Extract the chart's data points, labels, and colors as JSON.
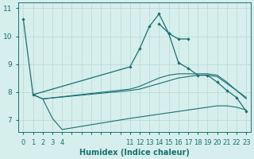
{
  "xlabel": "Humidex (Indice chaleur)",
  "background_color": "#d6eeec",
  "line_color": "#1a7070",
  "xlim": [
    -0.5,
    23.5
  ],
  "ylim": [
    6.55,
    11.2
  ],
  "xtick_labels": [
    0,
    1,
    2,
    3,
    4,
    11,
    12,
    13,
    14,
    15,
    16,
    17,
    18,
    19,
    20,
    21,
    22,
    23
  ],
  "yticks": [
    7,
    8,
    9,
    10,
    11
  ],
  "line1_x": [
    0,
    1,
    11,
    12,
    13,
    14,
    15,
    16,
    17
  ],
  "line1_y": [
    10.6,
    7.9,
    8.9,
    9.55,
    10.35,
    10.8,
    10.1,
    9.9,
    9.9
  ],
  "line2_x": [
    14,
    15,
    16,
    17,
    18,
    19,
    20,
    21,
    22,
    23
  ],
  "line2_y": [
    10.45,
    10.1,
    9.05,
    8.85,
    8.6,
    8.6,
    8.35,
    8.05,
    7.8,
    7.3
  ],
  "line3_x": [
    2,
    3,
    4,
    11,
    12,
    13,
    14,
    15,
    16,
    17,
    18,
    19,
    20,
    21,
    22,
    23
  ],
  "line3_y": [
    7.75,
    7.05,
    6.65,
    7.05,
    7.1,
    7.15,
    7.2,
    7.25,
    7.3,
    7.35,
    7.4,
    7.45,
    7.5,
    7.5,
    7.45,
    7.35
  ],
  "line4_x": [
    1,
    2,
    11,
    12,
    13,
    14,
    15,
    16,
    17,
    18,
    19,
    20,
    21,
    22,
    23
  ],
  "line4_y": [
    7.9,
    7.75,
    8.05,
    8.1,
    8.2,
    8.3,
    8.4,
    8.5,
    8.55,
    8.6,
    8.6,
    8.55,
    8.3,
    8.05,
    7.75
  ],
  "line5_x": [
    1,
    2,
    11,
    12,
    13,
    14,
    15,
    16,
    17,
    18,
    19,
    20,
    21,
    22,
    23
  ],
  "line5_y": [
    7.9,
    7.75,
    8.1,
    8.2,
    8.35,
    8.5,
    8.6,
    8.65,
    8.65,
    8.65,
    8.65,
    8.6,
    8.35,
    8.05,
    7.8
  ]
}
